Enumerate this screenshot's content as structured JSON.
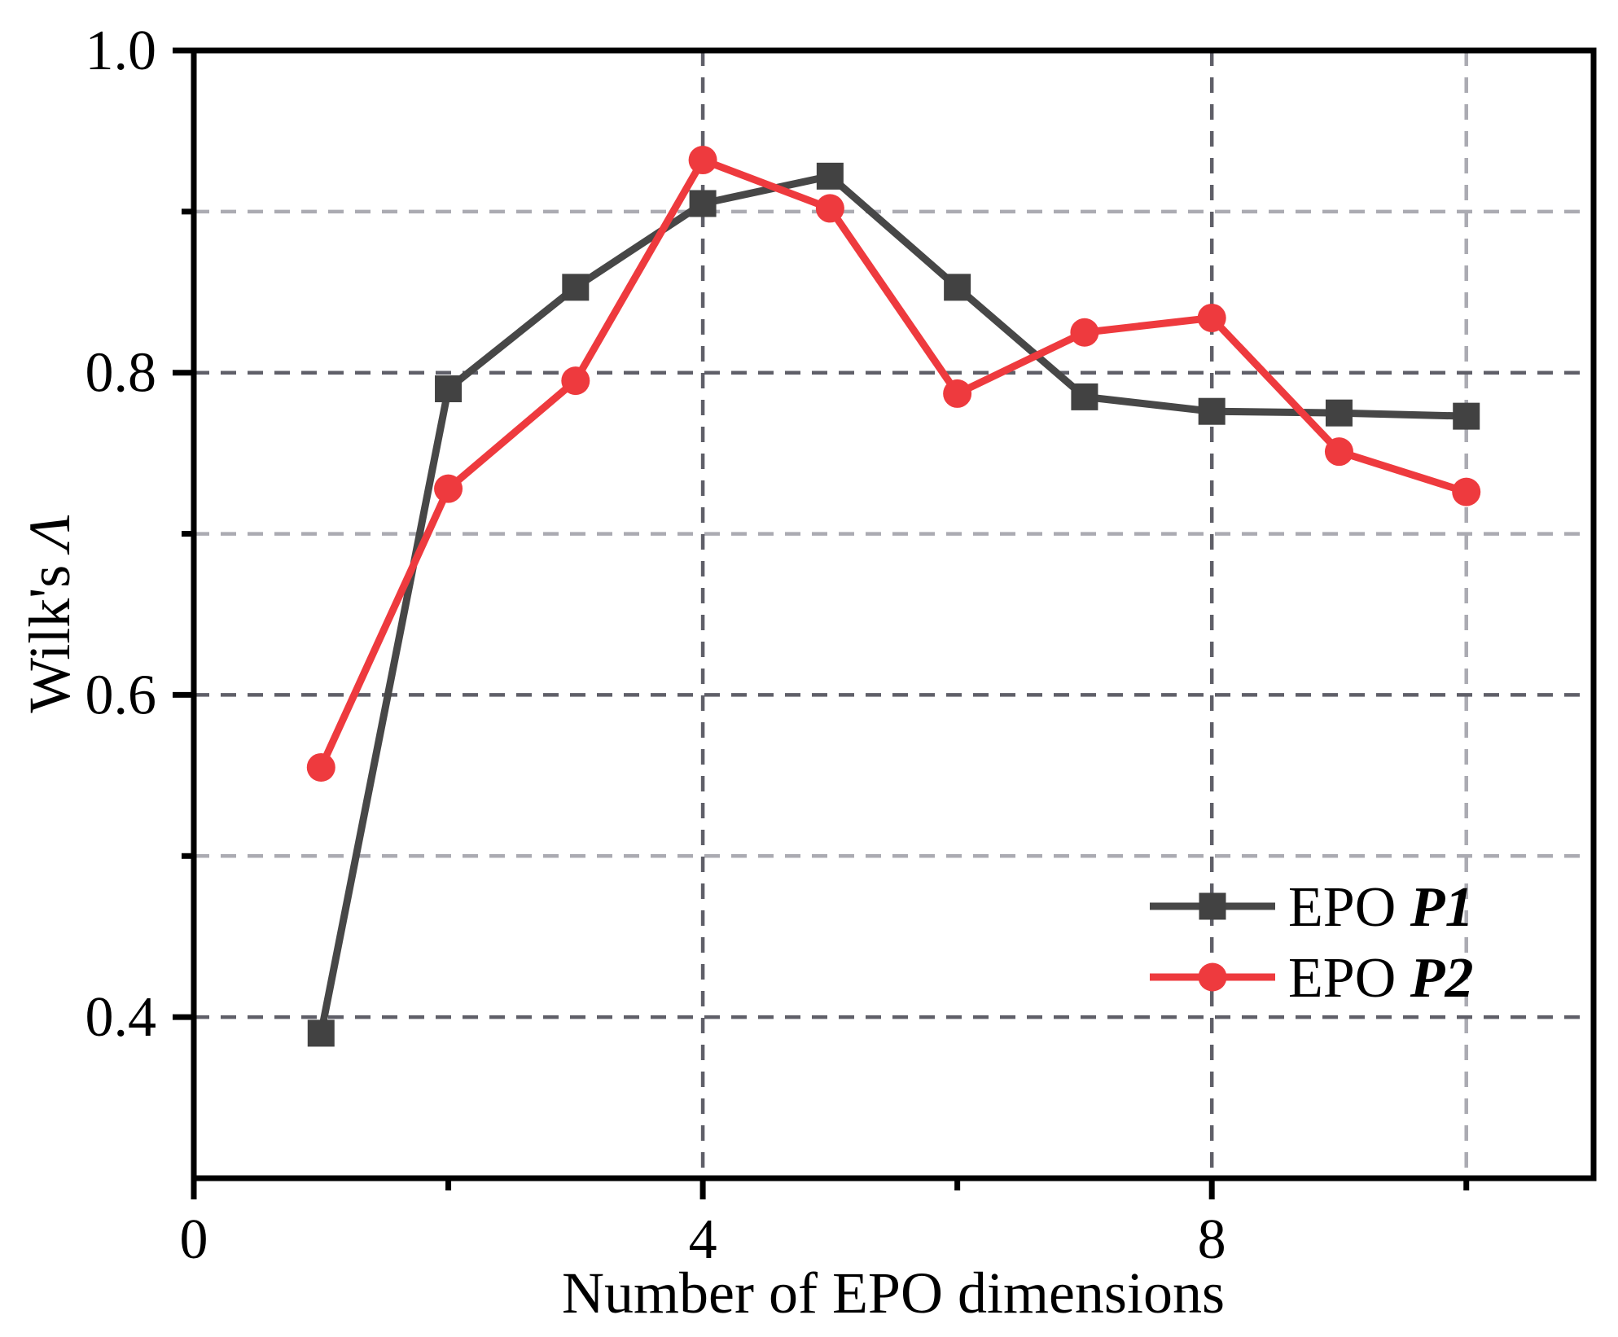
{
  "figure": {
    "background": "#ffffff",
    "axis_color": "#000000"
  },
  "chart_data": {
    "type": "line",
    "title": "",
    "xlabel": "Number of EPO dimensions",
    "ylabel_prefix": "Wilk's ",
    "ylabel_symbol": "Λ",
    "x": [
      1,
      2,
      3,
      4,
      5,
      6,
      7,
      8,
      9,
      10
    ],
    "series": [
      {
        "name_prefix": "EPO ",
        "name_emph": "P1",
        "marker": "square",
        "color": "#474747",
        "marker_color": "#424242",
        "values": [
          0.39,
          0.79,
          0.853,
          0.905,
          0.922,
          0.853,
          0.785,
          0.776,
          0.775,
          0.773
        ]
      },
      {
        "name_prefix": "EPO ",
        "name_emph": "P2",
        "marker": "circle",
        "color": "#ee3a3e",
        "marker_color": "#ee3a3e",
        "values": [
          0.555,
          0.728,
          0.795,
          0.932,
          0.902,
          0.787,
          0.825,
          0.834,
          0.751,
          0.726
        ]
      }
    ],
    "xlim": [
      0,
      11
    ],
    "ylim": [
      0.3,
      1.0
    ],
    "x_major_ticks": [
      0,
      4,
      8
    ],
    "x_minor_ticks": [
      2,
      6,
      10
    ],
    "x_tick_labels": [
      "0",
      "4",
      "8"
    ],
    "y_major_ticks": [
      1.0,
      0.8,
      0.6,
      0.4
    ],
    "y_minor_ticks": [
      0.9,
      0.7,
      0.5
    ],
    "y_tick_labels": [
      "1.0",
      "0.8",
      "0.6",
      "0.4"
    ],
    "grid": {
      "y_major": [
        0.8,
        0.6,
        0.4
      ],
      "y_minor": [
        0.9,
        0.7,
        0.5
      ],
      "x_major": [
        4,
        8
      ],
      "x_minor": [
        10
      ],
      "major_color": "#5f5f68",
      "minor_color": "#ababb2",
      "dash": "19 14",
      "width": 4.5
    },
    "legend": {
      "position": "bottom-right",
      "entries": [
        "EPO P1",
        "EPO P2"
      ]
    }
  }
}
